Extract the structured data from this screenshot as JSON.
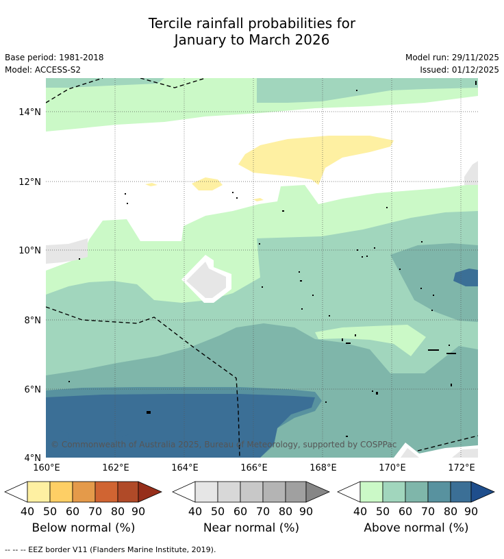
{
  "header": {
    "title_line1": "Tercile rainfall probabilities for",
    "title_line2": "January to March 2026",
    "base_period": "Base period: 1981-2018",
    "model": "Model: ACCESS-S2",
    "model_run": "Model run: 29/11/2025",
    "issued": "Issued: 01/12/2025"
  },
  "map": {
    "lat_labels": [
      "14°N",
      "12°N",
      "10°N",
      "8°N",
      "6°N",
      "4°N"
    ],
    "lon_labels": [
      "160°E",
      "162°E",
      "164°E",
      "166°E",
      "168°E",
      "170°E",
      "172°E"
    ],
    "copyright": "© Commonwealth of Australia 2025, Bureau of Meteorology, supported by COSPPac"
  },
  "legend": {
    "ticks": [
      "40",
      "50",
      "60",
      "70",
      "80",
      "90"
    ],
    "below": {
      "label": "Below normal (%)",
      "colors": [
        "#ffffff",
        "#fef0a2",
        "#fecf65",
        "#e49a4a",
        "#d06432",
        "#b04a28",
        "#962e1a"
      ]
    },
    "near": {
      "label": "Near normal (%)",
      "colors": [
        "#ffffff",
        "#e6e6e6",
        "#d8d8d8",
        "#c8c8c8",
        "#b4b4b4",
        "#a0a0a0",
        "#868686"
      ]
    },
    "above": {
      "label": "Above normal (%)",
      "colors": [
        "#ffffff",
        "#cbf9c7",
        "#a1d6bd",
        "#7fb6aa",
        "#58929f",
        "#3b6f96",
        "#1f4e8c"
      ]
    }
  },
  "footnote": "--  --  -- EEZ border V11 (Flanders Marine Institute, 2019)."
}
